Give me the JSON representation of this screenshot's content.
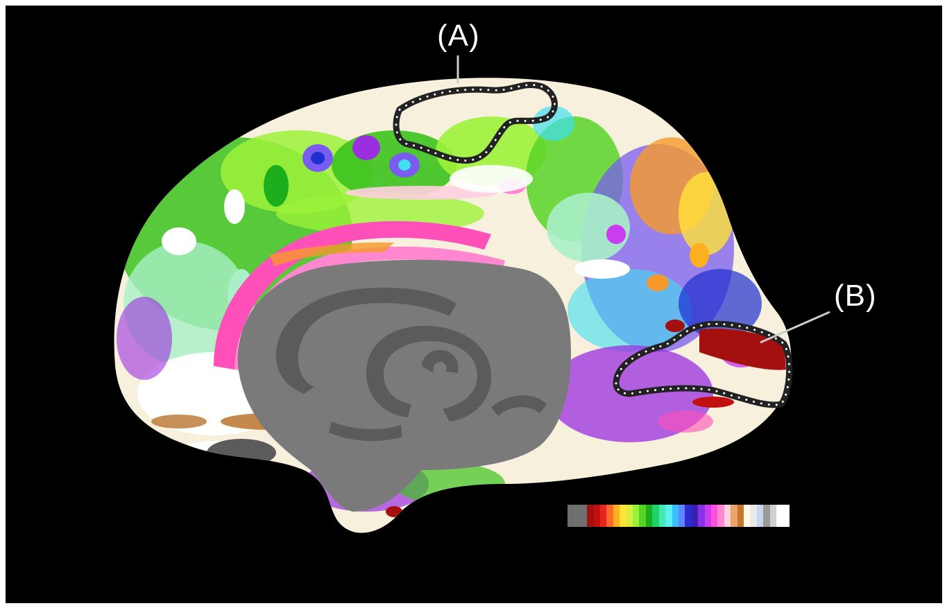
{
  "figure": {
    "background": "#000000",
    "labels": {
      "a": "(A)",
      "b": "(B)"
    },
    "outline_color": "#ffffff",
    "marker_dot_color": "#ffffff",
    "surface_colors": {
      "medial_wall_dark": "#5b5b5b",
      "medial_wall_light": "#7a7a7a",
      "green": "#3cc21e",
      "lime": "#9cf23a",
      "mint": "#a9f0c8",
      "purple": "#9b2fe0",
      "violet": "#7a5cf0",
      "pink": "#ff4fb8",
      "magenta": "#e2128c",
      "white": "#ffffff",
      "cream": "#f7f0dc",
      "dark_red": "#a40f0f",
      "orange": "#f59a2a",
      "brown": "#b8742e",
      "cyan": "#40e0f0",
      "blue": "#1d2fd0"
    },
    "colorbar": [
      "#6f6f6f",
      "#6f6f6f",
      "#6f6f6f",
      "#a40f0f",
      "#c21010",
      "#e6251e",
      "#ff6a2a",
      "#ffb01f",
      "#ffe23a",
      "#d5f03a",
      "#9cf23a",
      "#58d428",
      "#1cae1c",
      "#1fd26a",
      "#45e8b0",
      "#5df0f0",
      "#36c0ff",
      "#5f86ff",
      "#2b2bd0",
      "#3b1fb0",
      "#8a30e6",
      "#c93cf0",
      "#ff4fdc",
      "#ff87d0",
      "#ffd0e0",
      "#e9a468",
      "#c47530",
      "#fff7e6",
      "#e9e9e9",
      "#c6d6ee",
      "#9a9a9a",
      "#d0d0d0",
      "#ffffff",
      "#ffffff"
    ]
  }
}
